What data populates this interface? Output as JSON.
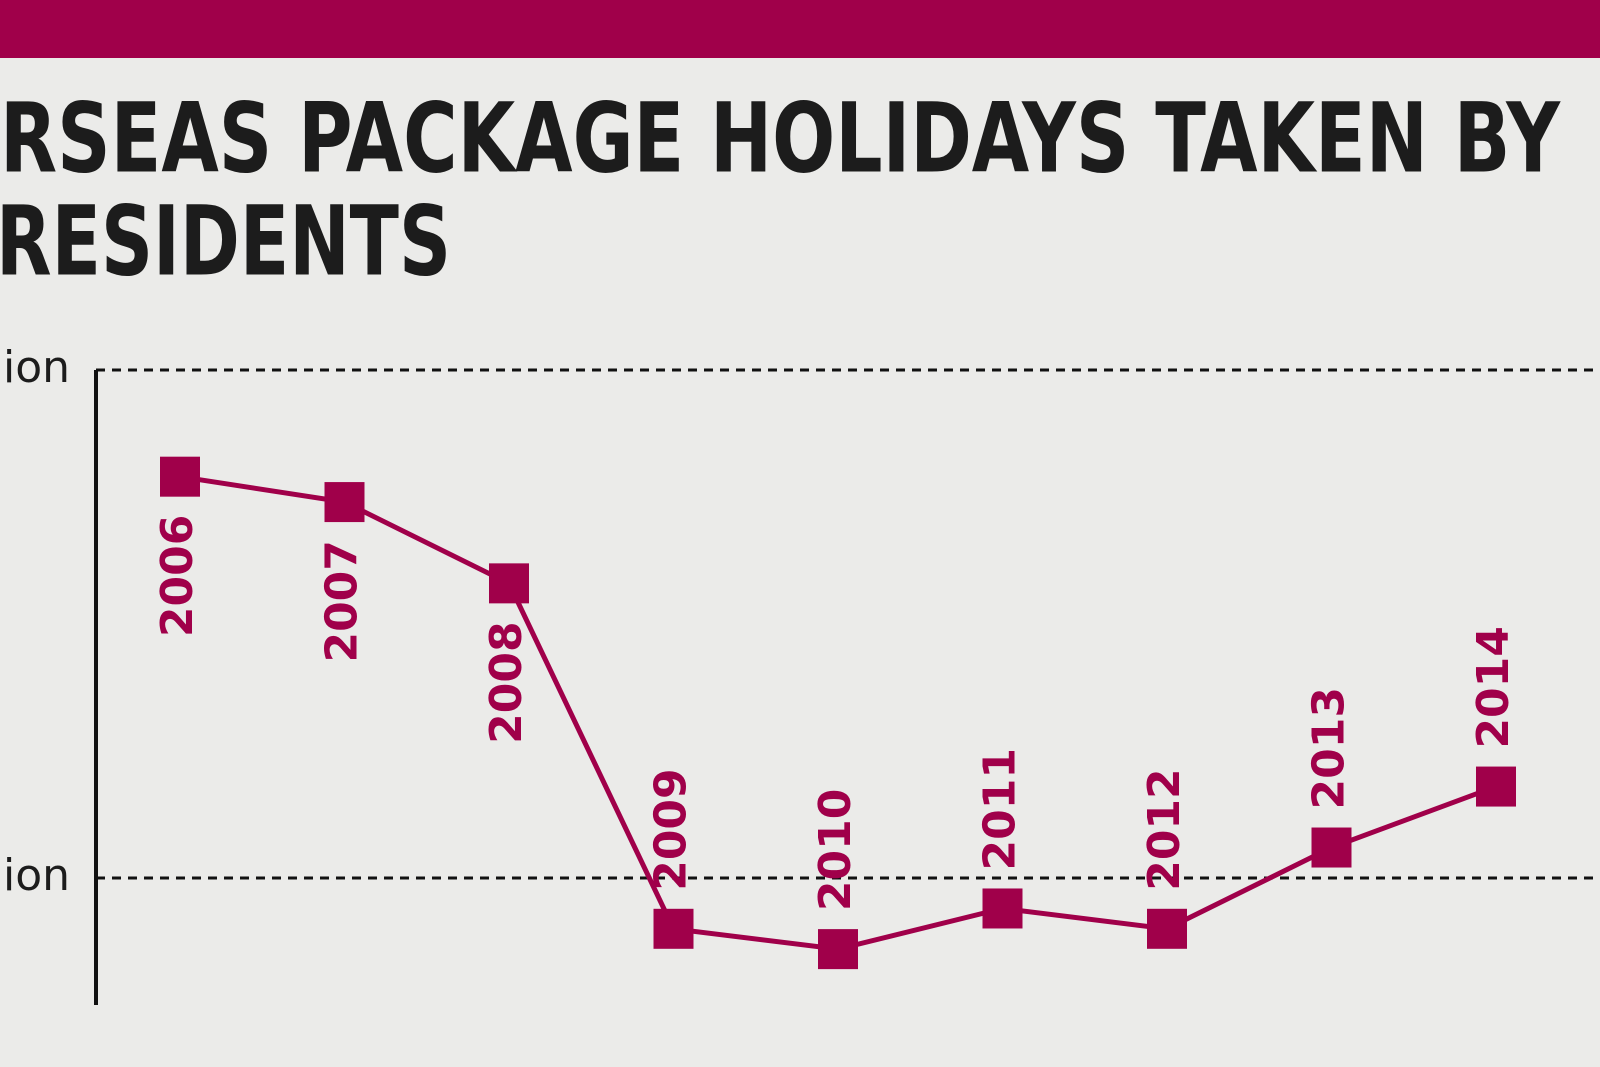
{
  "chart_data": {
    "type": "line",
    "title": [
      "RSEAS PACKAGE HOLIDAYS TAKEN BY",
      "RESIDENTS"
    ],
    "categories": [
      "2006",
      "2007",
      "2008",
      "2009",
      "2010",
      "2011",
      "2012",
      "2013",
      "2014"
    ],
    "series": [
      {
        "color": "#a0004a",
        "values": [
          1.79,
          1.74,
          1.58,
          0.9,
          0.86,
          0.94,
          0.9,
          1.06,
          1.18
        ]
      }
    ],
    "ylim": [
      0.75,
      2
    ],
    "yticks": [
      {
        "value": 1,
        "label": "ion"
      },
      {
        "value": 2,
        "label": "ion"
      }
    ],
    "grid": true
  }
}
